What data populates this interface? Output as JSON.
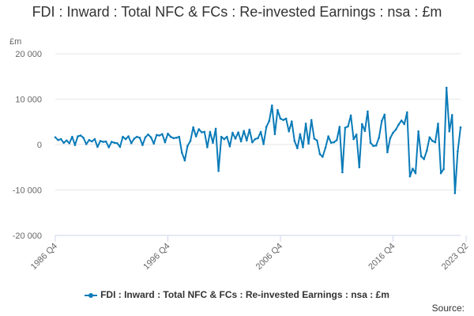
{
  "title": "FDI : Inward : Total NFC & FCs : Re-invested Earnings : nsa : £m",
  "unit_label": "£m",
  "source_label": "Source:",
  "colors": {
    "series": "#0a7bb8",
    "grid": "#e6e6e6",
    "axis": "#ccd6eb",
    "text": "#333333",
    "tick_text": "#666666"
  },
  "chart_data": {
    "type": "line",
    "title": "FDI : Inward : Total NFC & FCs : Re-invested Earnings : nsa : £m",
    "ylabel": "£m",
    "xlabel": "",
    "ylim": [
      -20000,
      20000
    ],
    "y_ticks": [
      20000,
      10000,
      0,
      -10000,
      -20000
    ],
    "y_tick_labels": [
      "20 000",
      "10 000",
      "0",
      "-10 000",
      "-20 000"
    ],
    "x_tick_labels": [
      "1986 Q4",
      "1996 Q4",
      "2006 Q4",
      "2016 Q4",
      "2023 Q2"
    ],
    "x_tick_index": [
      0,
      40,
      80,
      120,
      146
    ],
    "grid": true,
    "legend_position": "bottom",
    "x_start": "1986 Q4",
    "x_end": "2023 Q2",
    "series": [
      {
        "name": "FDI : Inward : Total NFC & FCs : Re-invested Earnings : nsa : £m",
        "values": [
          1600,
          1000,
          1200,
          400,
          900,
          300,
          1700,
          -100,
          1800,
          2000,
          1500,
          100,
          1000,
          700,
          1200,
          -500,
          800,
          600,
          700,
          -600,
          600,
          400,
          300,
          -500,
          1700,
          1200,
          1800,
          300,
          1300,
          1700,
          1500,
          -100,
          1600,
          2200,
          1600,
          200,
          2100,
          2000,
          2300,
          500,
          2400,
          1700,
          1400,
          1500,
          1700,
          -1800,
          -3500,
          -300,
          800,
          3800,
          1800,
          3400,
          2700,
          2800,
          -600,
          2800,
          400,
          3500,
          -5800,
          1700,
          1200,
          1700,
          -400,
          2600,
          1300,
          2700,
          700,
          3000,
          900,
          3300,
          500,
          1200,
          1400,
          2800,
          100,
          3900,
          5200,
          8600,
          2300,
          7600,
          5700,
          5400,
          5700,
          2900,
          5100,
          800,
          -800,
          2300,
          -600,
          4600,
          200,
          5400,
          1300,
          900,
          -2100,
          -2700,
          -700,
          1800,
          400,
          500,
          1000,
          3900,
          -6100,
          3700,
          4000,
          6400,
          1200,
          2200,
          -5000,
          4500,
          3000,
          7300,
          400,
          -300,
          -200,
          1500,
          5200,
          6600,
          -1700,
          1400,
          2600,
          3300,
          4400,
          5300,
          4500,
          7100,
          -7000,
          -5300,
          -6300,
          2900,
          -2600,
          -3200,
          -1300,
          1600,
          800,
          500,
          4600,
          -6300,
          -5400,
          12500,
          2900,
          6500,
          -10700,
          -1500,
          3800
        ]
      }
    ]
  }
}
